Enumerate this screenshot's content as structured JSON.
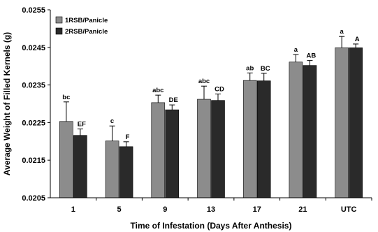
{
  "chart_data": {
    "type": "bar",
    "xlabel": "Time of Infestation (Days After Anthesis)",
    "ylabel": "Average Weight of Filled Kernels (g)",
    "ylim": [
      0.0205,
      0.0255
    ],
    "yticks": [
      "0.0205",
      "0.0215",
      "0.0225",
      "0.0235",
      "0.0245",
      "0.0255"
    ],
    "grid": false,
    "legend_position": "top-left",
    "categories": [
      "1",
      "5",
      "9",
      "13",
      "17",
      "21",
      "UTC"
    ],
    "series": [
      {
        "name": "1RSB/Panicle",
        "color": "#8c8c8c",
        "values": [
          0.02253,
          0.02201,
          0.02303,
          0.02312,
          0.02362,
          0.02411,
          0.02449
        ],
        "errors": [
          0.00052,
          0.0004,
          0.0002,
          0.00035,
          0.0002,
          0.0002,
          0.0003
        ],
        "letters": [
          "bc",
          "c",
          "abc",
          "abc",
          "ab",
          "a",
          "a"
        ]
      },
      {
        "name": "2RSB/Panicle",
        "color": "#2a2a2a",
        "values": [
          0.02216,
          0.02186,
          0.02284,
          0.02309,
          0.02361,
          0.02402,
          0.02449
        ],
        "errors": [
          0.00017,
          0.00013,
          0.00013,
          0.00017,
          0.0002,
          0.00013,
          0.0001
        ],
        "letters": [
          "EF",
          "F",
          "DE",
          "CD",
          "BC",
          "AB",
          "A"
        ]
      }
    ]
  }
}
